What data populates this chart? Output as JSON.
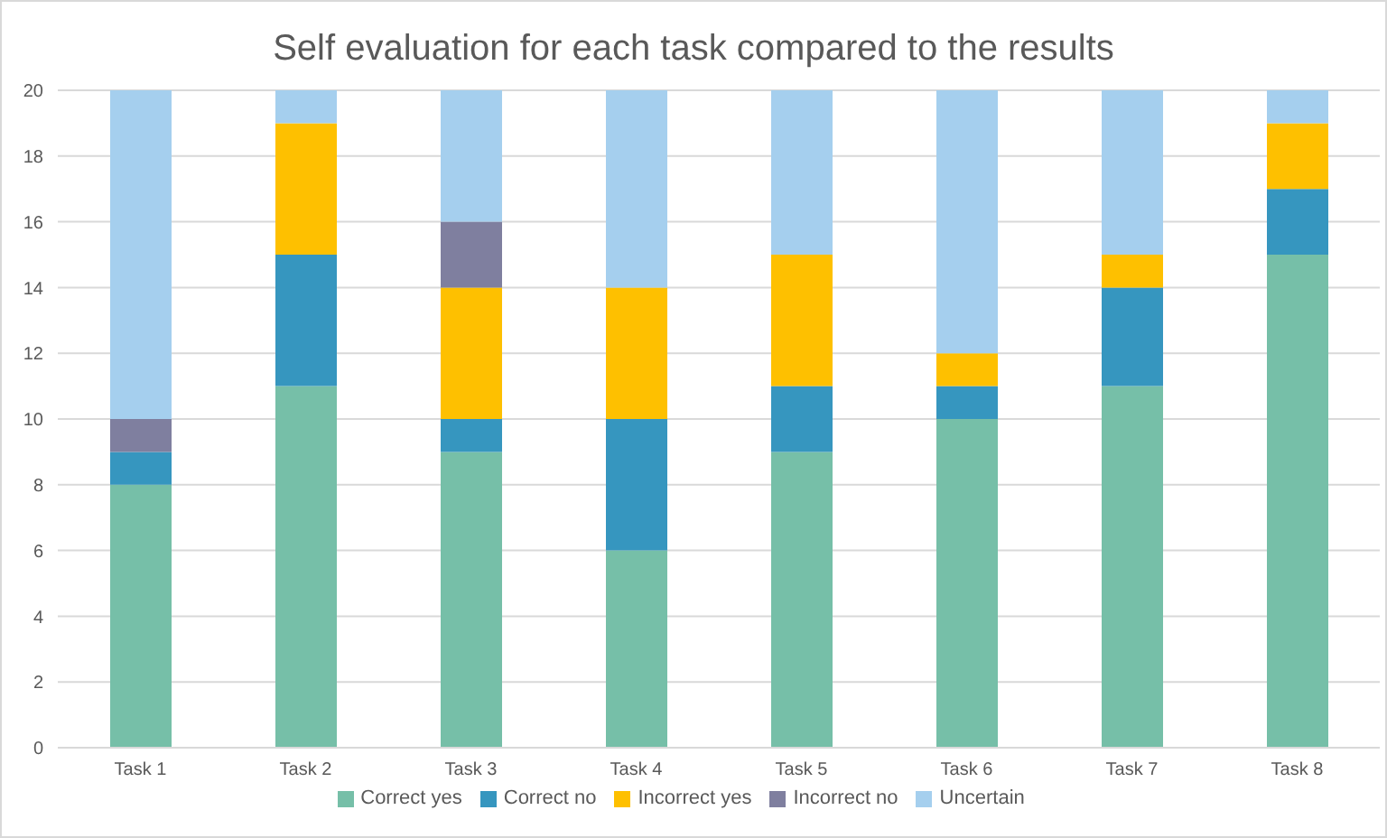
{
  "chart_data": {
    "type": "bar",
    "title": "Self evaluation for each task compared to the results",
    "stacked": true,
    "categories": [
      "Task 1",
      "Task 2",
      "Task 3",
      "Task 4",
      "Task 5",
      "Task 6",
      "Task 7",
      "Task 8"
    ],
    "series": [
      {
        "name": "Correct yes",
        "color": "#76bfa8",
        "values": [
          8,
          11,
          9,
          6,
          9,
          10,
          11,
          15
        ]
      },
      {
        "name": "Correct no",
        "color": "#3696bf",
        "values": [
          1,
          4,
          1,
          4,
          2,
          1,
          3,
          2
        ]
      },
      {
        "name": "Incorrect yes",
        "color": "#fec000",
        "values": [
          0,
          4,
          4,
          4,
          4,
          1,
          1,
          2
        ]
      },
      {
        "name": "Incorrect no",
        "color": "#7f7f9f",
        "values": [
          1,
          0,
          2,
          0,
          0,
          0,
          0,
          0
        ]
      },
      {
        "name": "Uncertain",
        "color": "#a5cfee",
        "values": [
          10,
          1,
          4,
          6,
          5,
          8,
          5,
          1
        ]
      }
    ],
    "ylim": [
      0,
      20
    ],
    "yticks": [
      0,
      2,
      4,
      6,
      8,
      10,
      12,
      14,
      16,
      18,
      20
    ],
    "grid": "y",
    "legend": "bottom"
  }
}
